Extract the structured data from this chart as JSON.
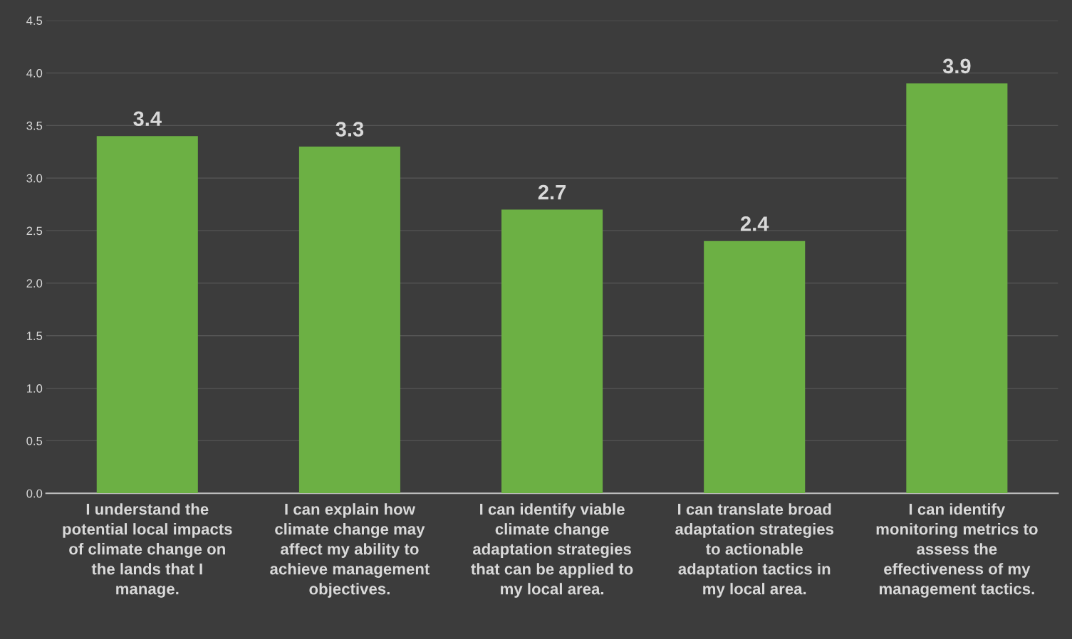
{
  "chart_data": {
    "type": "bar",
    "categories": [
      "I understand the potential local impacts of climate change on the lands that I manage.",
      "I can explain how climate change may affect my ability to achieve management objectives.",
      "I can identify viable climate change adaptation strategies that can be applied to my local area.",
      "I can translate broad adaptation strategies to actionable adaptation tactics in my local area.",
      "I can identify monitoring metrics to assess the effectiveness of my management tactics."
    ],
    "values": [
      3.4,
      3.3,
      2.7,
      2.4,
      3.9
    ],
    "color": "#6cb044",
    "data_labels": true,
    "ylim": [
      0.0,
      4.5
    ],
    "yticks": [
      {
        "value": 0,
        "label": "0.0"
      },
      0.5,
      {
        "value": 1,
        "label": "1.0"
      },
      1.5,
      {
        "value": 2,
        "label": "2.0"
      },
      2.5,
      {
        "value": 3,
        "label": "3.0"
      },
      3.5,
      {
        "value": 4,
        "label": "4.0"
      },
      4.5
    ],
    "grid": "y"
  }
}
